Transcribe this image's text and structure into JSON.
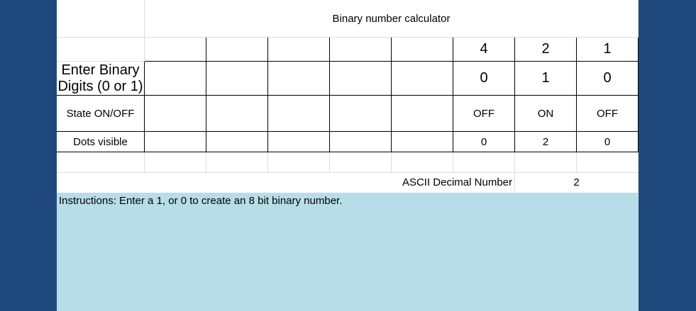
{
  "title": "Binary number calculator",
  "rows": {
    "header": {
      "label": "",
      "values": [
        "",
        "",
        "",
        "",
        "",
        "4",
        "2",
        "1"
      ]
    },
    "binary": {
      "label": "Enter Binary Digits (0 or 1)",
      "values": [
        "",
        "",
        "",
        "",
        "",
        "0",
        "1",
        "0"
      ]
    },
    "state": {
      "label": "State ON/OFF",
      "values": [
        "",
        "",
        "",
        "",
        "",
        "OFF",
        "ON",
        "OFF"
      ]
    },
    "dots": {
      "label": "Dots visible",
      "values": [
        "",
        "",
        "",
        "",
        "",
        "0",
        "2",
        "0"
      ]
    }
  },
  "ascii": {
    "label": "ASCII Decimal Number",
    "value": "2"
  },
  "instructions": "Instructions: Enter a 1, or 0  to create an 8 bit binary number.",
  "colors": {
    "background": "#1f497d",
    "instructions_fill": "#b7dde8"
  }
}
